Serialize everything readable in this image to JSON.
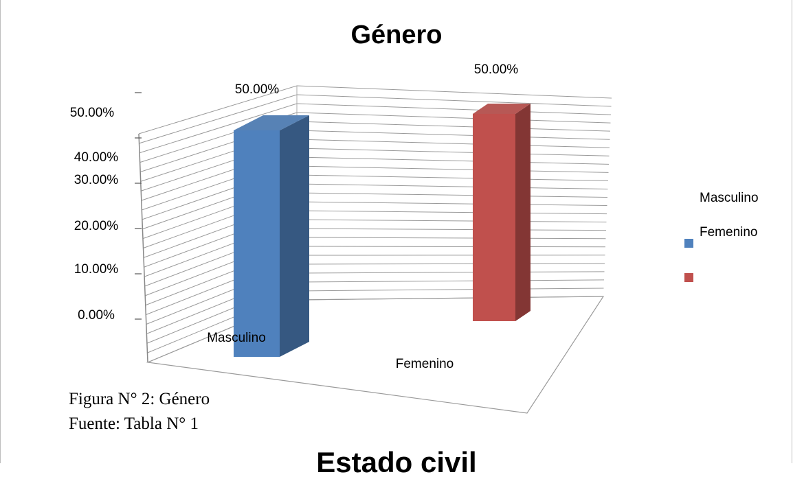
{
  "chart_data": {
    "type": "bar",
    "title": "Género",
    "categories": [
      "Masculino",
      "Femenino"
    ],
    "values": [
      50.0,
      50.0
    ],
    "value_labels": [
      "50.00%",
      "50.00%"
    ],
    "series_colors": [
      "#4f81bd",
      "#c0504d"
    ],
    "y_ticks": [
      "0.00%",
      "10.00%",
      "20.00%",
      "30.00%",
      "40.00%",
      "50.00%"
    ],
    "ylim": [
      0,
      50
    ],
    "grid": true,
    "legend": {
      "placement": "right",
      "entries": [
        "Masculino",
        "Femenino"
      ]
    }
  },
  "caption": {
    "figure": "Figura N° 2: Género",
    "source": "Fuente:  Tabla N° 1"
  },
  "next_heading": "Estado civil"
}
